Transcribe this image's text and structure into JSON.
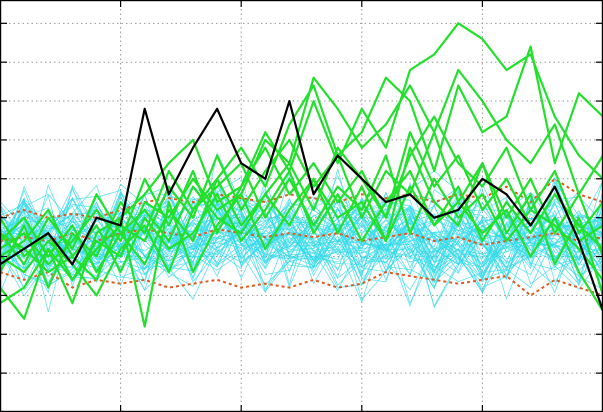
{
  "chart_data": {
    "type": "line",
    "title": "",
    "xlabel": "",
    "ylabel": "",
    "xlim": [
      0,
      25
    ],
    "ylim": [
      -2,
      3.3
    ],
    "x_ticks": [
      5,
      10,
      15,
      20
    ],
    "y_ticks": [
      -1.5,
      -1.0,
      -0.5,
      0.0,
      0.5,
      1.0,
      1.5,
      2.0,
      2.5,
      3.0
    ],
    "grid": true,
    "legend": "none",
    "colors": {
      "background_series": "#33d9e8",
      "highlight_series": "#22e02c",
      "reference_series": "#000000",
      "band_series": "#e05a20"
    },
    "background_series_count": 60,
    "highlight_series": [
      {
        "values": [
          0.3,
          0.1,
          -0.2,
          0.0,
          -0.3,
          0.5,
          0.8,
          1.2,
          1.5,
          0.7,
          0.9,
          1.6,
          1.1,
          2.0,
          1.2,
          1.9,
          1.4,
          2.4,
          2.6,
          3.0,
          2.8,
          2.4,
          2.6,
          1.8,
          1.3,
          1.0
        ]
      },
      {
        "values": [
          0.0,
          -0.2,
          0.2,
          -0.1,
          -0.5,
          0.1,
          0.4,
          -0.2,
          0.6,
          1.0,
          1.4,
          0.9,
          1.7,
          2.2,
          1.3,
          1.6,
          2.3,
          2.0,
          1.1,
          2.2,
          1.6,
          1.8,
          2.7,
          1.2,
          2.1,
          1.8
        ]
      },
      {
        "values": [
          -0.6,
          -0.4,
          0.1,
          -0.3,
          0.2,
          0.0,
          0.7,
          0.5,
          1.0,
          0.6,
          0.8,
          1.5,
          1.2,
          2.3,
          1.9,
          1.4,
          1.7,
          2.2,
          1.6,
          2.4,
          2.0,
          1.5,
          1.2,
          1.7,
          0.8,
          1.3
        ]
      },
      {
        "values": [
          0.2,
          0.5,
          0.0,
          0.4,
          -0.2,
          0.3,
          -0.1,
          0.6,
          0.2,
          1.0,
          0.4,
          0.8,
          1.2,
          0.6,
          1.4,
          1.0,
          0.5,
          1.3,
          1.8,
          1.2,
          0.9,
          1.4,
          0.6,
          1.1,
          0.3,
          0.7
        ]
      },
      {
        "values": [
          -0.4,
          -0.8,
          0.1,
          -0.6,
          0.3,
          0.5,
          -0.9,
          0.7,
          -0.2,
          0.4,
          0.8,
          0.1,
          0.6,
          1.0,
          0.3,
          0.9,
          0.2,
          1.4,
          0.7,
          0.4,
          1.2,
          0.3,
          0.8,
          -0.1,
          0.5,
          -0.5
        ]
      },
      {
        "values": [
          0.1,
          0.3,
          -0.1,
          0.2,
          0.6,
          0.2,
          1.0,
          0.4,
          1.1,
          0.3,
          0.9,
          1.4,
          0.8,
          1.2,
          0.7,
          1.1,
          0.5,
          1.6,
          0.9,
          1.3,
          0.6,
          1.0,
          0.4,
          0.9,
          0.2,
          0.4
        ]
      },
      {
        "values": [
          0.5,
          0.0,
          0.3,
          -0.3,
          0.1,
          0.4,
          0.2,
          0.9,
          0.5,
          1.3,
          0.6,
          1.1,
          1.5,
          0.9,
          1.3,
          0.5,
          1.1,
          0.8,
          1.6,
          0.7,
          1.2,
          0.5,
          1.0,
          0.3,
          0.8,
          0.0
        ]
      },
      {
        "values": [
          -0.2,
          0.4,
          -0.4,
          0.3,
          0.0,
          0.7,
          0.3,
          1.1,
          0.6,
          0.9,
          1.2,
          0.5,
          1.0,
          0.4,
          0.9,
          0.6,
          1.3,
          0.3,
          1.0,
          0.5,
          0.8,
          0.2,
          0.6,
          0.4,
          0.1,
          -0.3
        ]
      },
      {
        "values": [
          0.3,
          -0.1,
          0.5,
          0.1,
          0.8,
          0.3,
          0.6,
          0.2,
          0.9,
          0.5,
          0.3,
          0.8,
          0.4,
          1.0,
          0.5,
          0.7,
          0.2,
          0.9,
          0.4,
          0.7,
          0.3,
          0.6,
          0.0,
          0.5,
          -0.2,
          -0.7
        ]
      },
      {
        "values": [
          0.0,
          0.2,
          0.6,
          0.0,
          0.4,
          -0.2,
          0.5,
          0.1,
          0.3,
          0.8,
          0.2,
          0.6,
          1.1,
          0.3,
          0.8,
          0.2,
          0.7,
          1.1,
          0.4,
          0.9,
          0.2,
          0.7,
          0.3,
          0.8,
          0.4,
          0.1
        ]
      }
    ],
    "reference_series": {
      "values": [
        -0.1,
        0.1,
        0.3,
        -0.1,
        0.5,
        0.4,
        1.9,
        0.8,
        1.4,
        1.9,
        1.2,
        1.0,
        2.0,
        0.8,
        1.3,
        1.0,
        0.7,
        0.8,
        0.5,
        0.6,
        1.0,
        0.8,
        0.4,
        0.9,
        0.2,
        -0.7
      ]
    },
    "band_series": [
      {
        "values": [
          0.5,
          0.6,
          0.5,
          0.55,
          0.5,
          0.6,
          0.7,
          0.75,
          0.7,
          0.8,
          0.75,
          0.7,
          0.8,
          0.75,
          0.7,
          0.8,
          0.75,
          0.8,
          0.7,
          0.8,
          0.75,
          0.9,
          0.7,
          1.0,
          0.8,
          0.7
        ]
      },
      {
        "values": [
          0.2,
          0.25,
          0.2,
          0.3,
          0.2,
          0.3,
          0.35,
          0.3,
          0.25,
          0.35,
          0.3,
          0.25,
          0.3,
          0.25,
          0.3,
          0.2,
          0.25,
          0.3,
          0.2,
          0.25,
          0.15,
          0.2,
          0.25,
          0.3,
          0.2,
          0.25
        ]
      },
      {
        "values": [
          -0.2,
          -0.3,
          -0.2,
          -0.4,
          -0.3,
          -0.35,
          -0.3,
          -0.4,
          -0.35,
          -0.3,
          -0.4,
          -0.35,
          -0.4,
          -0.3,
          -0.4,
          -0.35,
          -0.2,
          -0.25,
          -0.3,
          -0.35,
          -0.3,
          -0.25,
          -0.5,
          -0.3,
          -0.4,
          -0.5
        ]
      }
    ]
  }
}
